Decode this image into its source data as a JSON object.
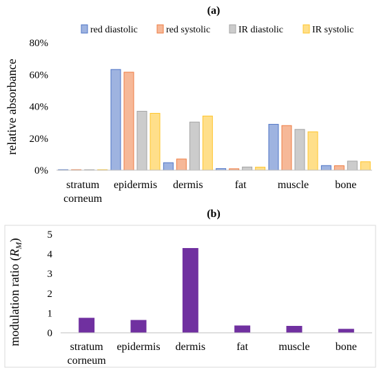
{
  "chart_data": [
    {
      "type": "bar",
      "title": "(a)",
      "xlabel": "",
      "ylabel": "relative absorbance",
      "categories": [
        "stratum corneum",
        "epidermis",
        "dermis",
        "fat",
        "muscle",
        "bone"
      ],
      "ylim": [
        0,
        0.8
      ],
      "yticks": [
        "0%",
        "20%",
        "40%",
        "60%",
        "80%"
      ],
      "grid": false,
      "legend_position": "top",
      "series": [
        {
          "name": "red diastolic",
          "color": "#4f75c6",
          "values": [
            0.003,
            0.632,
            0.047,
            0.01,
            0.288,
            0.029
          ]
        },
        {
          "name": "red systolic",
          "color": "#ee7d43",
          "values": [
            0.003,
            0.615,
            0.07,
            0.009,
            0.28,
            0.028
          ]
        },
        {
          "name": "IR diastolic",
          "color": "#a3a3a3",
          "values": [
            0.003,
            0.37,
            0.302,
            0.02,
            0.256,
            0.057
          ]
        },
        {
          "name": "IR systolic",
          "color": "#ffc42a",
          "values": [
            0.003,
            0.357,
            0.34,
            0.019,
            0.241,
            0.053
          ]
        }
      ]
    },
    {
      "type": "bar",
      "title": "(b)",
      "xlabel": "",
      "ylabel": "modulation ratio (R_M)",
      "ylabel_main": "modulation ratio (",
      "ylabel_sym": "R",
      "ylabel_sub": "M",
      "ylabel_close": ")",
      "categories": [
        "stratum corneum",
        "epidermis",
        "dermis",
        "fat",
        "muscle",
        "bone"
      ],
      "ylim": [
        0,
        5
      ],
      "yticks": [
        "0",
        "1",
        "2",
        "3",
        "4",
        "5"
      ],
      "grid": false,
      "series": [
        {
          "color": "#7030a0",
          "values": [
            0.76,
            0.65,
            4.3,
            0.37,
            0.35,
            0.2
          ]
        }
      ]
    }
  ]
}
